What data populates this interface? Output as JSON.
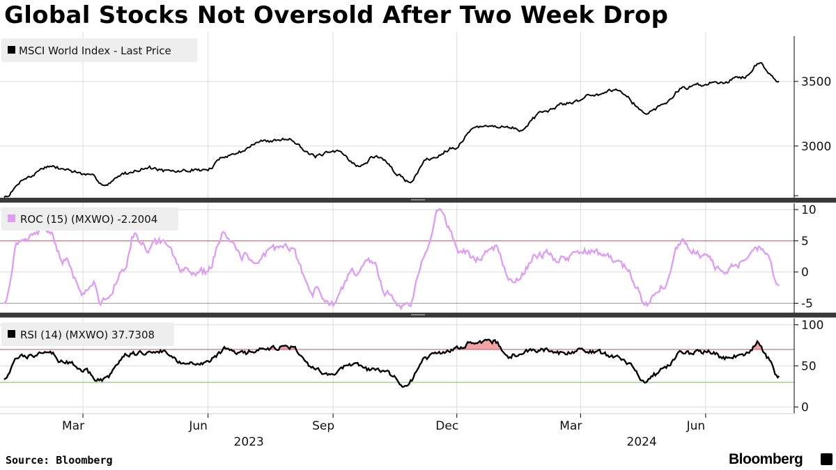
{
  "page": {
    "title": "Global Stocks Not Oversold After Two Week Drop",
    "source": "Source: Bloomberg",
    "brand": "Bloomberg"
  },
  "colors": {
    "price_line": "#000000",
    "roc_line": "#dda0f0",
    "rsi_line": "#000000",
    "upper_threshold": "#d4495a",
    "lower_threshold": "#6cc644",
    "overbought_fill": "#f3a3a3",
    "grid": "#dcdcdc"
  },
  "chart_data": [
    {
      "type": "line",
      "panel": "price",
      "legend": "MSCI World Index - Last Price",
      "ylim": [
        2600,
        3850
      ],
      "yticks": [
        3000,
        3500
      ],
      "ytick_labels": [
        "3000",
        "3500"
      ],
      "x": [
        "2023-01",
        "2023-02",
        "2023-03",
        "2023-04",
        "2023-05",
        "2023-06",
        "2023-07",
        "2023-08",
        "2023-09",
        "2023-10",
        "2023-11",
        "2023-12",
        "2024-01",
        "2024-02",
        "2024-03",
        "2024-04",
        "2024-05",
        "2024-06",
        "2024-07"
      ],
      "anchors": [
        [
          "2023-01-02",
          2605
        ],
        [
          "2023-01-20",
          2760
        ],
        [
          "2023-02-02",
          2840
        ],
        [
          "2023-02-15",
          2820
        ],
        [
          "2023-03-09",
          2760
        ],
        [
          "2023-03-17",
          2700
        ],
        [
          "2023-03-31",
          2790
        ],
        [
          "2023-04-18",
          2830
        ],
        [
          "2023-05-04",
          2800
        ],
        [
          "2023-05-31",
          2820
        ],
        [
          "2023-06-15",
          2930
        ],
        [
          "2023-07-14",
          3040
        ],
        [
          "2023-07-31",
          3060
        ],
        [
          "2023-08-18",
          2920
        ],
        [
          "2023-09-06",
          2960
        ],
        [
          "2023-09-20",
          2840
        ],
        [
          "2023-10-02",
          2920
        ],
        [
          "2023-10-27",
          2730
        ],
        [
          "2023-11-10",
          2900
        ],
        [
          "2023-11-30",
          3000
        ],
        [
          "2023-12-14",
          3140
        ],
        [
          "2023-12-29",
          3160
        ],
        [
          "2024-01-17",
          3130
        ],
        [
          "2024-01-31",
          3240
        ],
        [
          "2024-02-22",
          3340
        ],
        [
          "2024-03-08",
          3390
        ],
        [
          "2024-03-28",
          3440
        ],
        [
          "2024-04-19",
          3260
        ],
        [
          "2024-05-01",
          3320
        ],
        [
          "2024-05-15",
          3450
        ],
        [
          "2024-05-31",
          3480
        ],
        [
          "2024-06-14",
          3500
        ],
        [
          "2024-06-28",
          3540
        ],
        [
          "2024-07-11",
          3640
        ],
        [
          "2024-07-18",
          3560
        ],
        [
          "2024-07-25",
          3500
        ]
      ]
    },
    {
      "type": "line",
      "panel": "roc",
      "legend": "ROC (15) (MXWO) -2.2004",
      "last_value": -2.2004,
      "ylim": [
        -6.5,
        11
      ],
      "thresholds": [
        5,
        -5
      ],
      "yticks": [
        10,
        5,
        0,
        -5
      ],
      "ytick_labels": [
        "10",
        "5",
        "0",
        "-5"
      ],
      "anchors": [
        [
          "2023-01-02",
          -4.5
        ],
        [
          "2023-01-13",
          5
        ],
        [
          "2023-02-02",
          7
        ],
        [
          "2023-02-16",
          2
        ],
        [
          "2023-02-28",
          -3
        ],
        [
          "2023-03-09",
          -1.5
        ],
        [
          "2023-03-15",
          -5
        ],
        [
          "2023-03-31",
          0
        ],
        [
          "2023-04-07",
          6
        ],
        [
          "2023-04-18",
          4
        ],
        [
          "2023-04-28",
          5
        ],
        [
          "2023-05-15",
          0
        ],
        [
          "2023-05-31",
          0
        ],
        [
          "2023-06-12",
          6
        ],
        [
          "2023-06-23",
          3
        ],
        [
          "2023-07-07",
          1
        ],
        [
          "2023-07-17",
          4
        ],
        [
          "2023-07-31",
          4
        ],
        [
          "2023-08-18",
          -3
        ],
        [
          "2023-08-31",
          -5
        ],
        [
          "2023-09-15",
          0
        ],
        [
          "2023-09-29",
          2
        ],
        [
          "2023-10-10",
          -3
        ],
        [
          "2023-10-26",
          -6
        ],
        [
          "2023-11-08",
          3
        ],
        [
          "2023-11-17",
          10
        ],
        [
          "2023-12-04",
          3
        ],
        [
          "2023-12-14",
          2
        ],
        [
          "2023-12-29",
          4
        ],
        [
          "2024-01-10",
          -2
        ],
        [
          "2024-01-31",
          3
        ],
        [
          "2024-02-15",
          2
        ],
        [
          "2024-02-29",
          3
        ],
        [
          "2024-03-20",
          3
        ],
        [
          "2024-04-01",
          1
        ],
        [
          "2024-04-19",
          -5
        ],
        [
          "2024-05-01",
          -2
        ],
        [
          "2024-05-15",
          5
        ],
        [
          "2024-05-31",
          3
        ],
        [
          "2024-06-12",
          0
        ],
        [
          "2024-06-28",
          1
        ],
        [
          "2024-07-10",
          4
        ],
        [
          "2024-07-17",
          2
        ],
        [
          "2024-07-25",
          -2.2004
        ]
      ]
    },
    {
      "type": "line",
      "panel": "rsi",
      "legend": "RSI (14) (MXWO) 37.7308",
      "last_value": 37.7308,
      "ylim": [
        -8,
        108
      ],
      "thresholds": [
        70,
        30
      ],
      "yticks": [
        100,
        50,
        0
      ],
      "ytick_labels": [
        "100",
        "50",
        "0"
      ],
      "anchors": [
        [
          "2023-01-02",
          35
        ],
        [
          "2023-01-13",
          60
        ],
        [
          "2023-02-02",
          70
        ],
        [
          "2023-02-16",
          55
        ],
        [
          "2023-03-01",
          45
        ],
        [
          "2023-03-15",
          32
        ],
        [
          "2023-04-03",
          65
        ],
        [
          "2023-04-18",
          65
        ],
        [
          "2023-04-28",
          68
        ],
        [
          "2023-05-15",
          55
        ],
        [
          "2023-05-31",
          55
        ],
        [
          "2023-06-15",
          70
        ],
        [
          "2023-06-23",
          65
        ],
        [
          "2023-07-14",
          70
        ],
        [
          "2023-07-31",
          72
        ],
        [
          "2023-08-18",
          45
        ],
        [
          "2023-08-31",
          38
        ],
        [
          "2023-09-15",
          55
        ],
        [
          "2023-09-29",
          45
        ],
        [
          "2023-10-10",
          42
        ],
        [
          "2023-10-25",
          28
        ],
        [
          "2023-11-08",
          58
        ],
        [
          "2023-11-17",
          65
        ],
        [
          "2023-11-30",
          72
        ],
        [
          "2023-12-14",
          78
        ],
        [
          "2023-12-28",
          80
        ],
        [
          "2024-01-08",
          62
        ],
        [
          "2024-01-31",
          70
        ],
        [
          "2024-02-15",
          65
        ],
        [
          "2024-02-29",
          68
        ],
        [
          "2024-03-15",
          65
        ],
        [
          "2024-03-28",
          62
        ],
        [
          "2024-04-19",
          32
        ],
        [
          "2024-05-01",
          45
        ],
        [
          "2024-05-15",
          65
        ],
        [
          "2024-05-31",
          68
        ],
        [
          "2024-06-14",
          62
        ],
        [
          "2024-06-28",
          65
        ],
        [
          "2024-07-10",
          78
        ],
        [
          "2024-07-17",
          60
        ],
        [
          "2024-07-25",
          37.7308
        ]
      ]
    }
  ],
  "x_axis": {
    "month_labels": [
      {
        "date": "2023-03-01",
        "label": "Mar"
      },
      {
        "date": "2023-06-01",
        "label": "Jun"
      },
      {
        "date": "2023-09-01",
        "label": "Sep"
      },
      {
        "date": "2023-12-01",
        "label": "Dec"
      },
      {
        "date": "2024-03-01",
        "label": "Mar"
      },
      {
        "date": "2024-06-01",
        "label": "Jun"
      }
    ],
    "year_labels": [
      {
        "date": "2023-07-01",
        "label": "2023"
      },
      {
        "date": "2024-04-15",
        "label": "2024"
      }
    ],
    "start": "2022-12-30",
    "end": "2024-07-31"
  }
}
